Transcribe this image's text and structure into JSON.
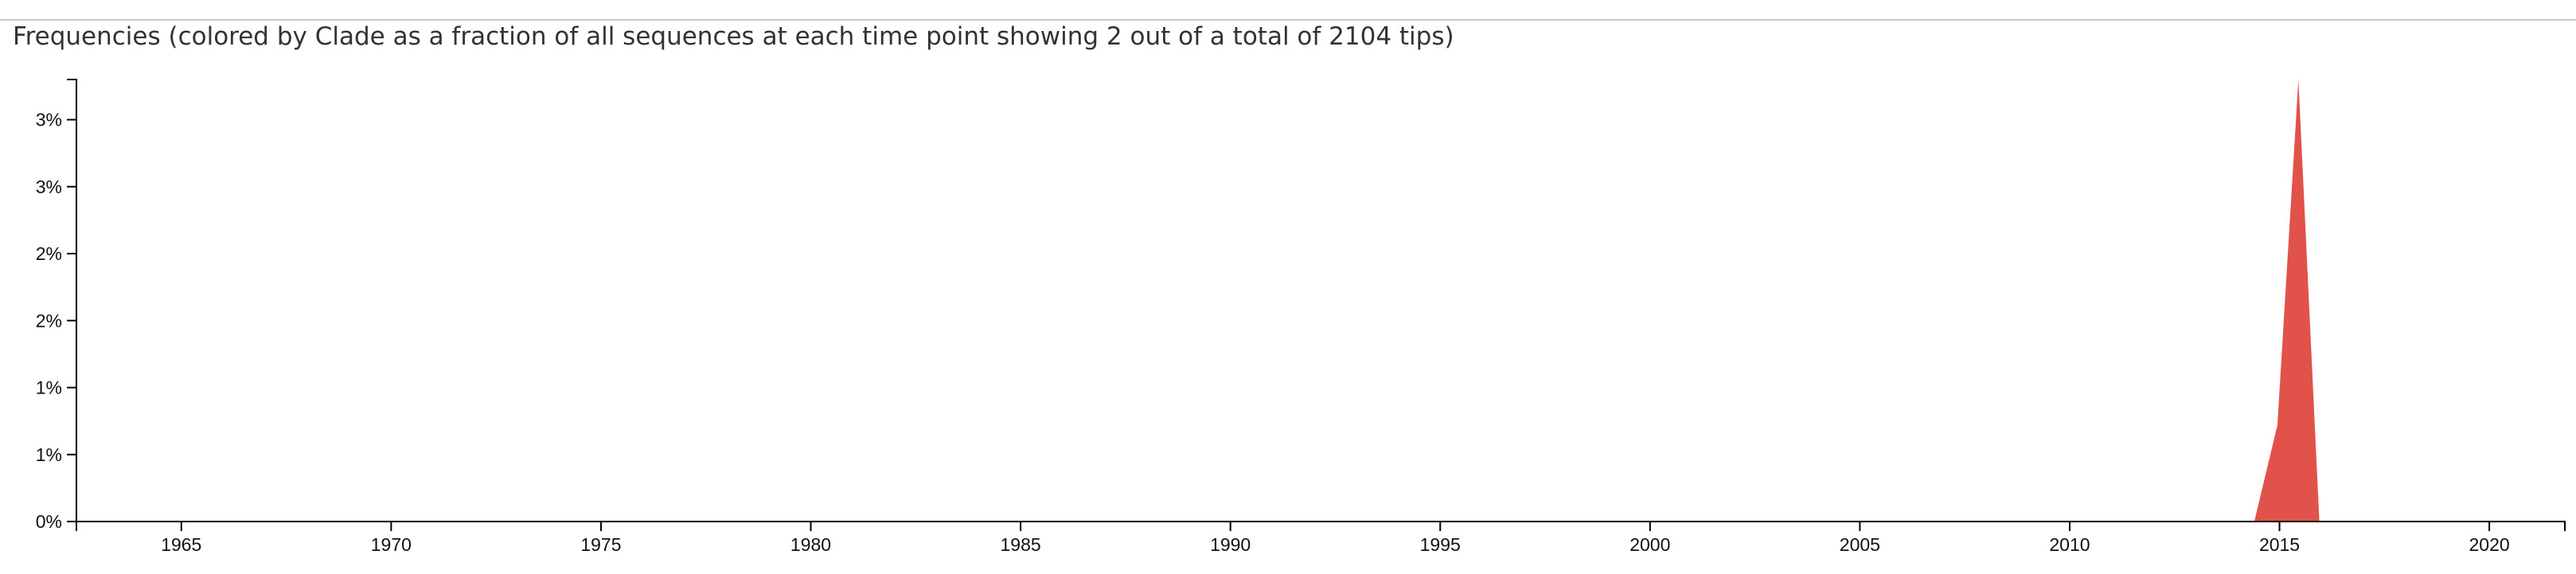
{
  "panel": {
    "title": "Frequencies (colored by Clade as a fraction of all sequences at each time point showing 2 out of a total of 2104 tips)"
  },
  "chart_data": {
    "type": "area",
    "title": "Frequencies (colored by Clade as a fraction of all sequences at each time point showing 2 out of a total of 2104 tips)",
    "xlabel": "",
    "ylabel": "",
    "xlim": [
      1962.5,
      2021.8
    ],
    "ylim": [
      0,
      3.3
    ],
    "x_ticks": [
      1965,
      1970,
      1975,
      1980,
      1985,
      1990,
      1995,
      2000,
      2005,
      2010,
      2015,
      2020
    ],
    "x_tick_labels": [
      "1965",
      "1970",
      "1975",
      "1980",
      "1985",
      "1990",
      "1995",
      "2000",
      "2005",
      "2010",
      "2015",
      "2020"
    ],
    "y_ticks": [
      0,
      0.5,
      1.0,
      1.5,
      2.0,
      2.5,
      3.0
    ],
    "y_tick_labels": [
      "0%",
      "1%",
      "1%",
      "2%",
      "2%",
      "3%",
      "3%"
    ],
    "grid": false,
    "legend": "none",
    "series": [
      {
        "color": "#e1524a",
        "x": [
          2014.4,
          2014.95,
          2015.45,
          2015.95
        ],
        "y": [
          0,
          0.72,
          3.3,
          0
        ]
      }
    ]
  }
}
